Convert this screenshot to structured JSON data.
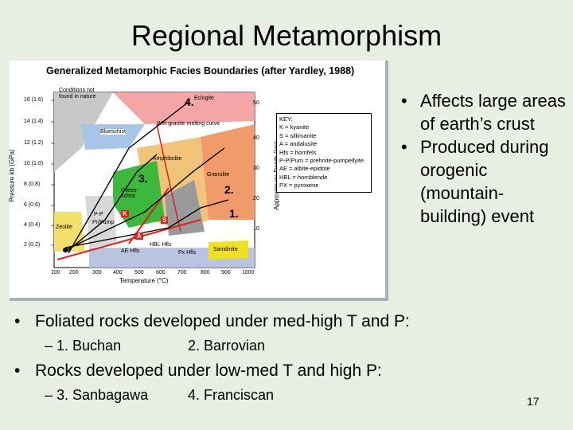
{
  "slide": {
    "title": "Regional Metamorphism",
    "page_number": "17"
  },
  "figure": {
    "title": "Generalized Metamorphic Facies Boundaries (after Yardley, 1988)",
    "y_axis_label": "Pressure kb (GPa)",
    "depth_axis_label": "Approximate Depth (km)",
    "x_axis_label": "Temperature (°C)",
    "y_ticks": [
      "16 (1.6)",
      "14 (1.4)",
      "12 (1.2)",
      "10 (1.0)",
      "8 (0.8)",
      "6 (0.6)",
      "4 (0.4)",
      "2 (0.2)"
    ],
    "x_ticks": [
      "100",
      "200",
      "300",
      "400",
      "500",
      "600",
      "700",
      "800",
      "900",
      "1000"
    ],
    "depth_ticks": [
      "50",
      "40",
      "30",
      "20",
      "10"
    ],
    "region_labels": {
      "conditions_not_found": "Conditions not found in nature",
      "eclogite": "Eclogite",
      "wet_granite": "Wet granite melting curve",
      "blueschist": "Blueschist",
      "amphibolite": "Amphibolite",
      "greenschist": "Green-schist",
      "granulite": "Granulite",
      "zeolite": "Zeolite",
      "pp": "P-P",
      "pr_pump": "Pr/Pump",
      "ae_hfls": "AE Hfls",
      "hbl_hfls": "HBL Hfls",
      "px_hfls": "Px Hfls",
      "sanidinite": "Sanidinite",
      "k": "K",
      "s": "S",
      "a": "A"
    },
    "numbers": {
      "n1": "1.",
      "n2": "2.",
      "n3": "3.",
      "n4": "4."
    },
    "legend": [
      "KEY:",
      "K = kyanite",
      "S = sillimanite",
      "A = andalusite",
      "Hfs = hornfels",
      "P-P/Pum = prehnite-pumpellyite",
      "AE = albite-epidote",
      "HBL = hornblende",
      "PX = pyroxene"
    ],
    "colors": {
      "eclogite": "#f4a6a6",
      "blueschist": "#a8c4e8",
      "amphibolite": "#f2c47a",
      "greenschist": "#3cb83c",
      "granulite": "#f29b6a",
      "zeolite": "#f2e06a",
      "sanidinite": "#f2e020",
      "hornfels": "#b8c4e0",
      "grey": "#b8b8b8",
      "red_box": "#e0201a",
      "arrow_red": "#e02020"
    }
  },
  "bullets_right": [
    "Affects large areas of earth’s crust",
    "Produced during orogenic (mountain-building) event"
  ],
  "bullets_bottom": [
    {
      "text": "Foliated rocks developed under med-high T and P:",
      "subs": [
        "– 1. Buchan",
        "2. Barrovian"
      ]
    },
    {
      "text": "Rocks developed under low-med T and high P:",
      "subs": [
        "– 3. Sanbagawa",
        "4. Franciscan"
      ]
    }
  ]
}
